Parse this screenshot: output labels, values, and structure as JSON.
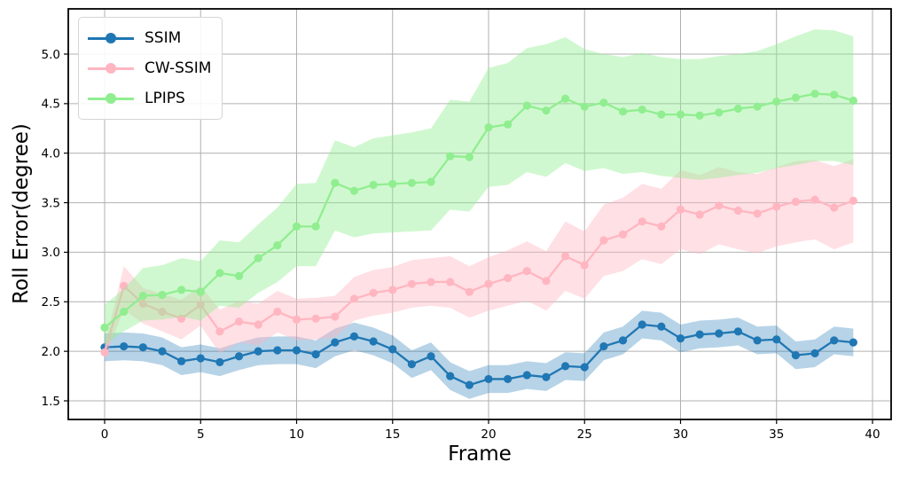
{
  "chart_data": {
    "type": "line",
    "title": "",
    "xlabel": "Frame",
    "ylabel": "Roll Error(degree)",
    "x_ticks": [
      0,
      5,
      10,
      15,
      20,
      25,
      30,
      35,
      40
    ],
    "y_ticks": [
      1.5,
      2.0,
      2.5,
      3.0,
      3.5,
      4.0,
      4.5,
      5.0
    ],
    "xlim": [
      -1.9,
      41.0
    ],
    "ylim": [
      1.31,
      5.46
    ],
    "x_start": 0,
    "x_step": 1,
    "grid": true,
    "legend_position": "upper left",
    "background_color": "#ffffff",
    "grid_color": "#b0b0b0",
    "spine_color": "#000000",
    "series": [
      {
        "name": "SSIM",
        "color": "#1f77b4",
        "band_opacity": 0.32,
        "values": [
          2.04,
          2.05,
          2.04,
          2.0,
          1.9,
          1.93,
          1.89,
          1.95,
          2.0,
          2.01,
          2.01,
          1.97,
          2.09,
          2.15,
          2.1,
          2.02,
          1.87,
          1.95,
          1.75,
          1.66,
          1.72,
          1.72,
          1.76,
          1.74,
          1.85,
          1.84,
          2.05,
          2.11,
          2.27,
          2.25,
          2.13,
          2.17,
          2.18,
          2.2,
          2.11,
          2.12,
          1.96,
          1.98,
          2.11,
          2.09
        ],
        "band_low": [
          1.9,
          1.91,
          1.9,
          1.86,
          1.76,
          1.79,
          1.75,
          1.81,
          1.86,
          1.87,
          1.87,
          1.83,
          1.95,
          2.01,
          1.96,
          1.88,
          1.73,
          1.81,
          1.61,
          1.52,
          1.58,
          1.58,
          1.62,
          1.6,
          1.71,
          1.7,
          1.91,
          1.97,
          2.13,
          2.11,
          1.99,
          2.03,
          2.04,
          2.06,
          1.97,
          1.98,
          1.82,
          1.84,
          1.97,
          1.95
        ],
        "band_high": [
          2.18,
          2.19,
          2.18,
          2.14,
          2.04,
          2.07,
          2.03,
          2.09,
          2.14,
          2.15,
          2.15,
          2.11,
          2.23,
          2.29,
          2.24,
          2.16,
          2.01,
          2.09,
          1.89,
          1.8,
          1.86,
          1.86,
          1.9,
          1.88,
          1.99,
          1.98,
          2.19,
          2.25,
          2.41,
          2.39,
          2.27,
          2.31,
          2.32,
          2.34,
          2.25,
          2.26,
          2.1,
          2.12,
          2.25,
          2.23
        ]
      },
      {
        "name": "CW-SSIM",
        "color": "#ffb6c1",
        "band_opacity": 0.42,
        "values": [
          1.99,
          2.66,
          2.48,
          2.4,
          2.33,
          2.47,
          2.2,
          2.3,
          2.27,
          2.4,
          2.32,
          2.33,
          2.35,
          2.53,
          2.59,
          2.62,
          2.68,
          2.7,
          2.7,
          2.6,
          2.68,
          2.74,
          2.81,
          2.71,
          2.96,
          2.87,
          3.12,
          3.18,
          3.31,
          3.26,
          3.43,
          3.38,
          3.47,
          3.42,
          3.39,
          3.46,
          3.51,
          3.53,
          3.45,
          3.52
        ],
        "band_low": [
          1.92,
          2.42,
          2.28,
          2.2,
          2.12,
          2.26,
          1.98,
          2.09,
          2.06,
          2.19,
          2.11,
          2.12,
          2.14,
          2.31,
          2.36,
          2.39,
          2.44,
          2.46,
          2.44,
          2.34,
          2.41,
          2.46,
          2.51,
          2.41,
          2.61,
          2.53,
          2.76,
          2.81,
          2.93,
          2.88,
          3.03,
          2.98,
          3.08,
          3.03,
          2.99,
          3.06,
          3.1,
          3.13,
          3.03,
          3.1
        ],
        "band_high": [
          2.06,
          2.86,
          2.64,
          2.58,
          2.52,
          2.66,
          2.42,
          2.51,
          2.48,
          2.61,
          2.53,
          2.54,
          2.56,
          2.75,
          2.82,
          2.85,
          2.92,
          2.94,
          2.96,
          2.86,
          2.95,
          3.02,
          3.11,
          3.01,
          3.31,
          3.21,
          3.48,
          3.55,
          3.69,
          3.64,
          3.83,
          3.78,
          3.86,
          3.81,
          3.79,
          3.86,
          3.92,
          3.93,
          3.87,
          3.94
        ]
      },
      {
        "name": "LPIPS",
        "color": "#90ee90",
        "band_opacity": 0.42,
        "values": [
          2.24,
          2.4,
          2.56,
          2.57,
          2.62,
          2.6,
          2.79,
          2.76,
          2.94,
          3.07,
          3.26,
          3.26,
          3.7,
          3.62,
          3.68,
          3.69,
          3.7,
          3.71,
          3.97,
          3.96,
          4.26,
          4.29,
          4.48,
          4.43,
          4.55,
          4.47,
          4.51,
          4.42,
          4.44,
          4.39,
          4.39,
          4.38,
          4.41,
          4.45,
          4.47,
          4.52,
          4.56,
          4.6,
          4.59,
          4.53
        ],
        "band_low": [
          2.06,
          2.2,
          2.31,
          2.32,
          2.35,
          2.31,
          2.46,
          2.44,
          2.59,
          2.7,
          2.86,
          2.86,
          3.22,
          3.15,
          3.19,
          3.2,
          3.21,
          3.22,
          3.43,
          3.41,
          3.66,
          3.68,
          3.81,
          3.76,
          3.9,
          3.82,
          3.85,
          3.79,
          3.81,
          3.77,
          3.75,
          3.73,
          3.75,
          3.78,
          3.8,
          3.85,
          3.88,
          3.92,
          3.92,
          3.88
        ],
        "band_high": [
          2.47,
          2.63,
          2.84,
          2.87,
          2.94,
          2.91,
          3.12,
          3.1,
          3.28,
          3.45,
          3.69,
          3.7,
          4.13,
          4.06,
          4.15,
          4.18,
          4.21,
          4.25,
          4.54,
          4.52,
          4.86,
          4.91,
          5.06,
          5.1,
          5.17,
          5.05,
          5.0,
          4.97,
          5.01,
          4.97,
          4.95,
          4.95,
          4.98,
          5.0,
          5.03,
          5.1,
          5.18,
          5.25,
          5.24,
          5.18
        ]
      }
    ]
  }
}
